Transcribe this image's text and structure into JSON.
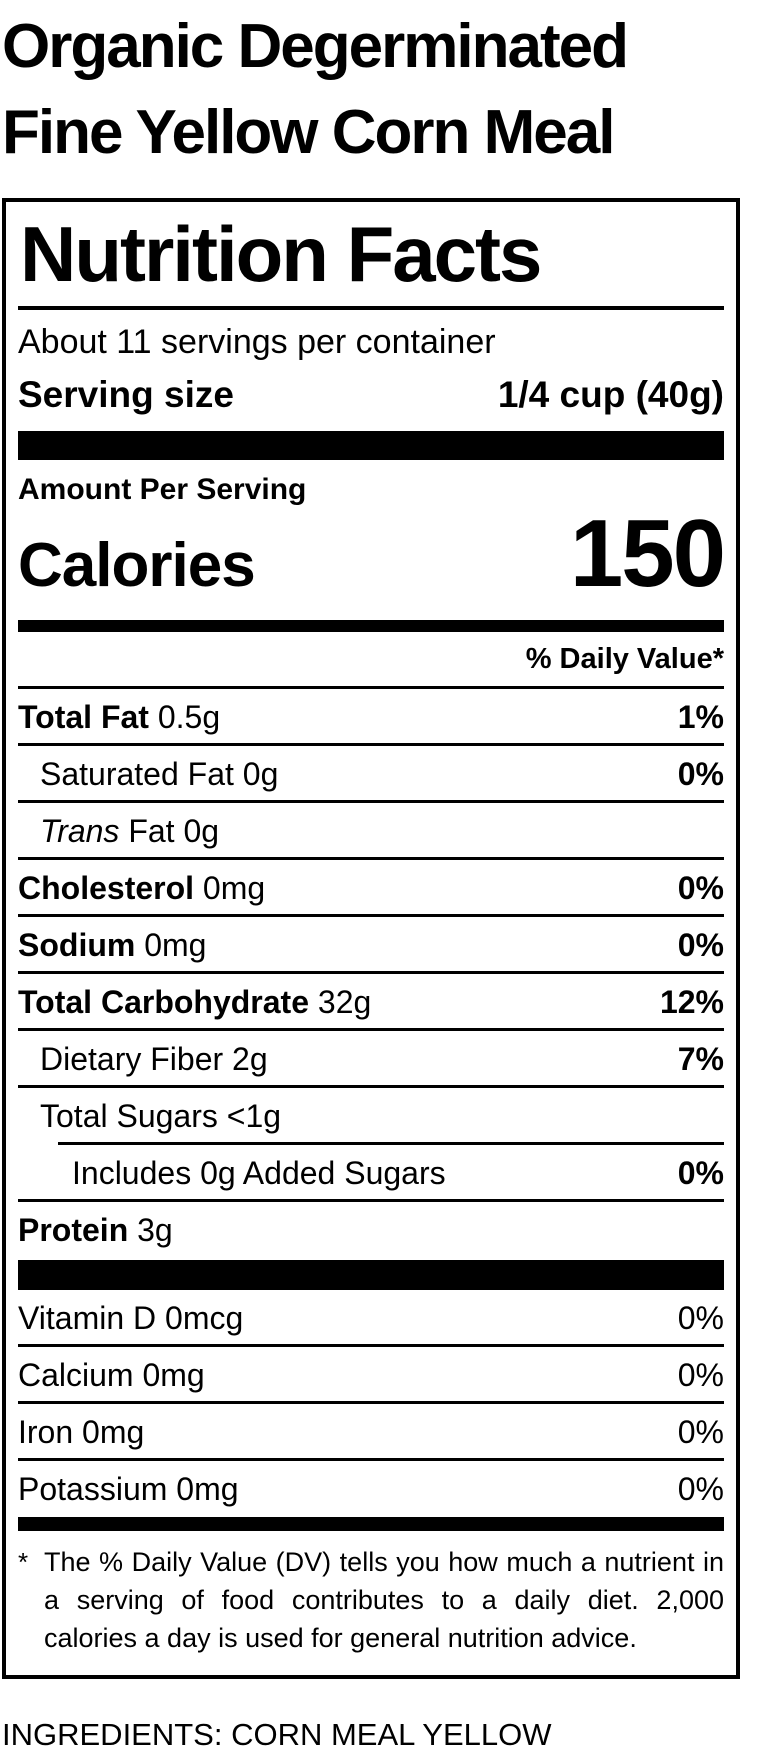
{
  "product": {
    "title": "Organic Degerminated Fine Yellow Corn Meal",
    "ingredients": "INGREDIENTS: CORN MEAL YELLOW"
  },
  "label": {
    "title": "Nutrition Facts",
    "servings_per_container": "About 11 servings per container",
    "serving_size_label": "Serving size",
    "serving_size_value": "1/4 cup (40g)",
    "amount_per_serving": "Amount Per Serving",
    "calories_label": "Calories",
    "calories_value": "150",
    "daily_value_header": "% Daily Value*",
    "nutrients": [
      {
        "name": "Total Fat",
        "amount": "0.5g",
        "dv": "1%",
        "bold": true,
        "dv_bold": true,
        "indent": 0
      },
      {
        "name": "Saturated Fat",
        "amount": "0g",
        "dv": "0%",
        "bold": false,
        "dv_bold": true,
        "indent": 1
      },
      {
        "name": "Trans Fat",
        "amount": "0g",
        "dv": "",
        "bold": false,
        "italic_first": true,
        "indent": 1
      },
      {
        "name": "Cholesterol",
        "amount": "0mg",
        "dv": "0%",
        "bold": true,
        "dv_bold": true,
        "indent": 0
      },
      {
        "name": "Sodium",
        "amount": "0mg",
        "dv": "0%",
        "bold": true,
        "dv_bold": true,
        "indent": 0
      },
      {
        "name": "Total Carbohydrate",
        "amount": "32g",
        "dv": "12%",
        "bold": true,
        "dv_bold": true,
        "indent": 0
      },
      {
        "name": "Dietary Fiber",
        "amount": "2g",
        "dv": "7%",
        "bold": false,
        "dv_bold": true,
        "indent": 1
      },
      {
        "name": "Total Sugars",
        "amount": "<1g",
        "dv": "",
        "bold": false,
        "indent": 1,
        "no_rule_below": true
      },
      {
        "name": "Includes 0g Added Sugars",
        "amount": "",
        "dv": "0%",
        "bold": false,
        "dv_bold": true,
        "indent": 2,
        "rule_above_indented": true
      },
      {
        "name": "Protein",
        "amount": "3g",
        "dv": "",
        "bold": true,
        "indent": 0
      }
    ],
    "vitamins": [
      {
        "name": "Vitamin D",
        "amount": "0mcg",
        "dv": "0%"
      },
      {
        "name": "Calcium",
        "amount": "0mg",
        "dv": "0%"
      },
      {
        "name": "Iron",
        "amount": "0mg",
        "dv": "0%"
      },
      {
        "name": "Potassium",
        "amount": "0mg",
        "dv": "0%"
      }
    ],
    "footnote_marker": "*",
    "footnote": "The % Daily Value (DV) tells you how much a nutrient in a serving of food contributes to a daily diet. 2,000 calories a day is used for general nutrition advice."
  },
  "colors": {
    "text": "#000000",
    "background": "#ffffff"
  }
}
